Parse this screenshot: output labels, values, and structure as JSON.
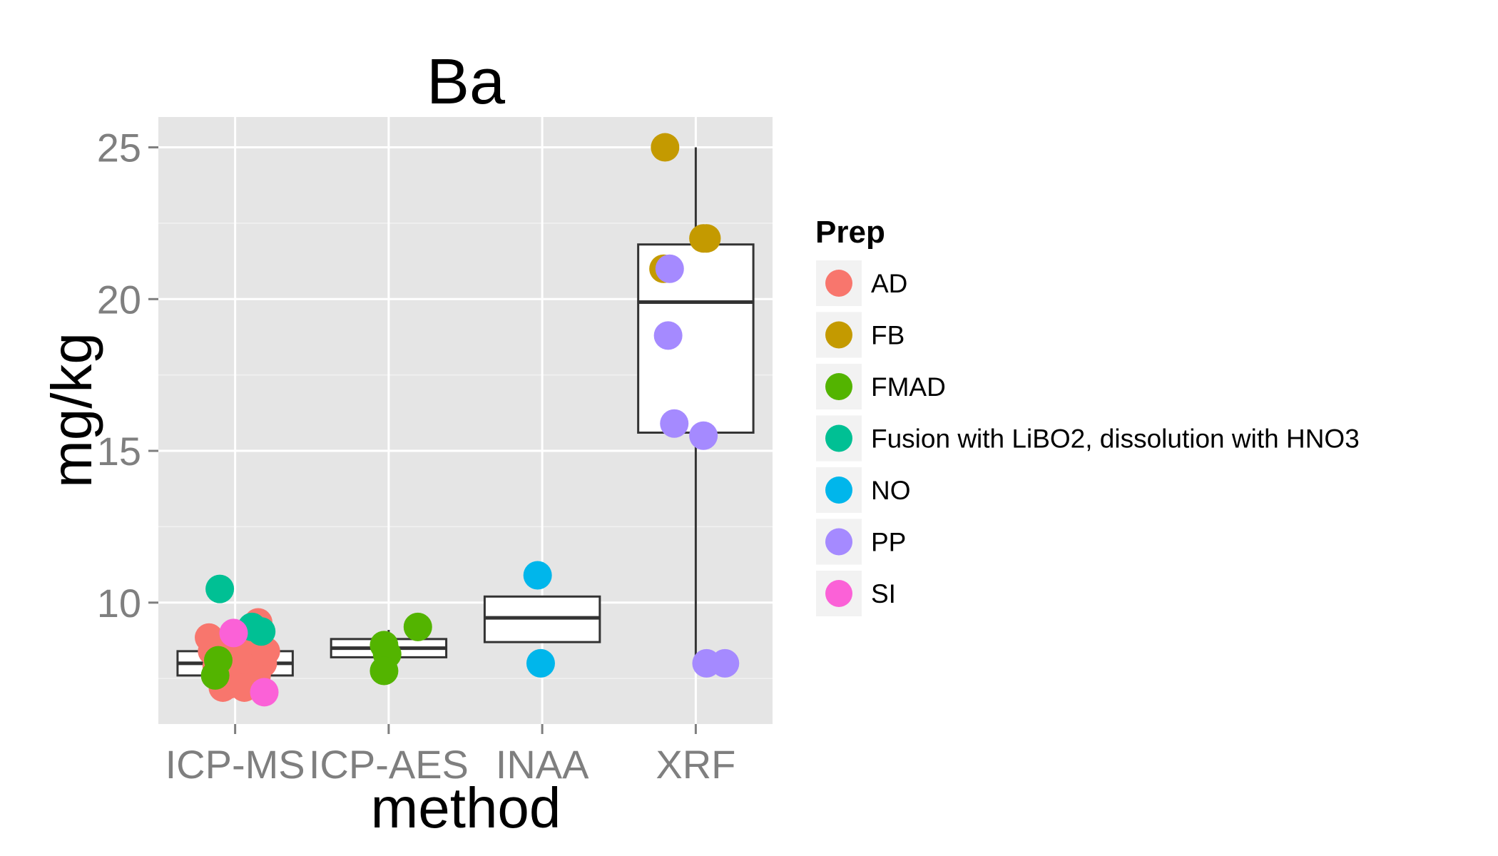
{
  "chart_data": {
    "type": "boxplot",
    "title": "Ba",
    "xlabel": "method",
    "ylabel": "mg/kg",
    "categories": [
      "ICP-MS",
      "ICP-AES",
      "INAA",
      "XRF"
    ],
    "ylim": [
      6.0,
      26.0
    ],
    "yticks": [
      10,
      15,
      20,
      25
    ],
    "grid": true,
    "legend": {
      "title": "Prep",
      "position": "right",
      "entries": [
        {
          "name": "AD",
          "color": "#F8766D"
        },
        {
          "name": "FB",
          "color": "#C49A00"
        },
        {
          "name": "FMAD",
          "color": "#53B400"
        },
        {
          "name": "Fusion with LiBO2, dissolution with HNO3",
          "color": "#00C094"
        },
        {
          "name": "NO",
          "color": "#00B6EB"
        },
        {
          "name": "PP",
          "color": "#A58AFF"
        },
        {
          "name": "SI",
          "color": "#FB61D7"
        }
      ]
    },
    "boxes": [
      {
        "category": "ICP-MS",
        "min": 7.1,
        "q1": 7.6,
        "median": 8.0,
        "q3": 8.4,
        "max": 9.0
      },
      {
        "category": "ICP-AES",
        "min": 8.2,
        "q1": 8.2,
        "median": 8.5,
        "q3": 8.8,
        "max": 9.1
      },
      {
        "category": "INAA",
        "min": 8.7,
        "q1": 8.7,
        "median": 9.5,
        "q3": 10.2,
        "max": 10.2
      },
      {
        "category": "XRF",
        "min": 8.0,
        "q1": 15.6,
        "median": 19.9,
        "q3": 21.8,
        "max": 25.0
      }
    ],
    "points": [
      {
        "category": "ICP-MS",
        "jitter": -0.17,
        "y": 8.85,
        "prep": "AD"
      },
      {
        "category": "ICP-MS",
        "jitter": -0.15,
        "y": 8.4,
        "prep": "AD"
      },
      {
        "category": "ICP-MS",
        "jitter": -0.12,
        "y": 7.9,
        "prep": "AD"
      },
      {
        "category": "ICP-MS",
        "jitter": -0.09,
        "y": 7.5,
        "prep": "AD"
      },
      {
        "category": "ICP-MS",
        "jitter": -0.06,
        "y": 8.6,
        "prep": "AD"
      },
      {
        "category": "ICP-MS",
        "jitter": -0.04,
        "y": 7.3,
        "prep": "AD"
      },
      {
        "category": "ICP-MS",
        "jitter": -0.02,
        "y": 8.2,
        "prep": "AD"
      },
      {
        "category": "ICP-MS",
        "jitter": 0.01,
        "y": 7.7,
        "prep": "AD"
      },
      {
        "category": "ICP-MS",
        "jitter": 0.03,
        "y": 8.9,
        "prep": "AD"
      },
      {
        "category": "ICP-MS",
        "jitter": 0.05,
        "y": 7.4,
        "prep": "AD"
      },
      {
        "category": "ICP-MS",
        "jitter": 0.08,
        "y": 8.5,
        "prep": "AD"
      },
      {
        "category": "ICP-MS",
        "jitter": 0.1,
        "y": 7.9,
        "prep": "AD"
      },
      {
        "category": "ICP-MS",
        "jitter": 0.12,
        "y": 8.3,
        "prep": "AD"
      },
      {
        "category": "ICP-MS",
        "jitter": 0.14,
        "y": 7.6,
        "prep": "AD"
      },
      {
        "category": "ICP-MS",
        "jitter": 0.15,
        "y": 9.35,
        "prep": "AD"
      },
      {
        "category": "ICP-MS",
        "jitter": 0.18,
        "y": 8.0,
        "prep": "AD"
      },
      {
        "category": "ICP-MS",
        "jitter": 0.2,
        "y": 8.4,
        "prep": "AD"
      },
      {
        "category": "ICP-MS",
        "jitter": -0.08,
        "y": 7.2,
        "prep": "AD"
      },
      {
        "category": "ICP-MS",
        "jitter": 0.06,
        "y": 7.2,
        "prep": "AD"
      },
      {
        "category": "ICP-MS",
        "jitter": -0.13,
        "y": 7.6,
        "prep": "FMAD"
      },
      {
        "category": "ICP-MS",
        "jitter": -0.11,
        "y": 8.1,
        "prep": "FMAD"
      },
      {
        "category": "ICP-MS",
        "jitter": -0.1,
        "y": 10.45,
        "prep": "Fusion with LiBO2, dissolution with HNO3"
      },
      {
        "category": "ICP-MS",
        "jitter": 0.11,
        "y": 9.2,
        "prep": "Fusion with LiBO2, dissolution with HNO3"
      },
      {
        "category": "ICP-MS",
        "jitter": 0.17,
        "y": 9.05,
        "prep": "Fusion with LiBO2, dissolution with HNO3"
      },
      {
        "category": "ICP-MS",
        "jitter": -0.01,
        "y": 9.0,
        "prep": "SI"
      },
      {
        "category": "ICP-MS",
        "jitter": 0.19,
        "y": 7.05,
        "prep": "SI"
      },
      {
        "category": "ICP-AES",
        "jitter": -0.03,
        "y": 8.6,
        "prep": "FMAD"
      },
      {
        "category": "ICP-AES",
        "jitter": -0.01,
        "y": 8.3,
        "prep": "FMAD"
      },
      {
        "category": "ICP-AES",
        "jitter": -0.03,
        "y": 7.75,
        "prep": "FMAD"
      },
      {
        "category": "ICP-AES",
        "jitter": 0.19,
        "y": 9.2,
        "prep": "FMAD"
      },
      {
        "category": "INAA",
        "jitter": -0.03,
        "y": 10.9,
        "prep": "NO"
      },
      {
        "category": "INAA",
        "jitter": -0.01,
        "y": 8.0,
        "prep": "NO"
      },
      {
        "category": "XRF",
        "jitter": -0.2,
        "y": 25.0,
        "prep": "FB"
      },
      {
        "category": "XRF",
        "jitter": 0.05,
        "y": 22.0,
        "prep": "FB"
      },
      {
        "category": "XRF",
        "jitter": 0.07,
        "y": 22.0,
        "prep": "FB"
      },
      {
        "category": "XRF",
        "jitter": -0.21,
        "y": 21.0,
        "prep": "FB"
      },
      {
        "category": "XRF",
        "jitter": -0.17,
        "y": 21.0,
        "prep": "PP"
      },
      {
        "category": "XRF",
        "jitter": -0.18,
        "y": 18.8,
        "prep": "PP"
      },
      {
        "category": "XRF",
        "jitter": -0.14,
        "y": 15.9,
        "prep": "PP"
      },
      {
        "category": "XRF",
        "jitter": 0.05,
        "y": 15.5,
        "prep": "PP"
      },
      {
        "category": "XRF",
        "jitter": 0.07,
        "y": 8.0,
        "prep": "PP"
      },
      {
        "category": "XRF",
        "jitter": 0.19,
        "y": 8.0,
        "prep": "PP"
      }
    ]
  }
}
